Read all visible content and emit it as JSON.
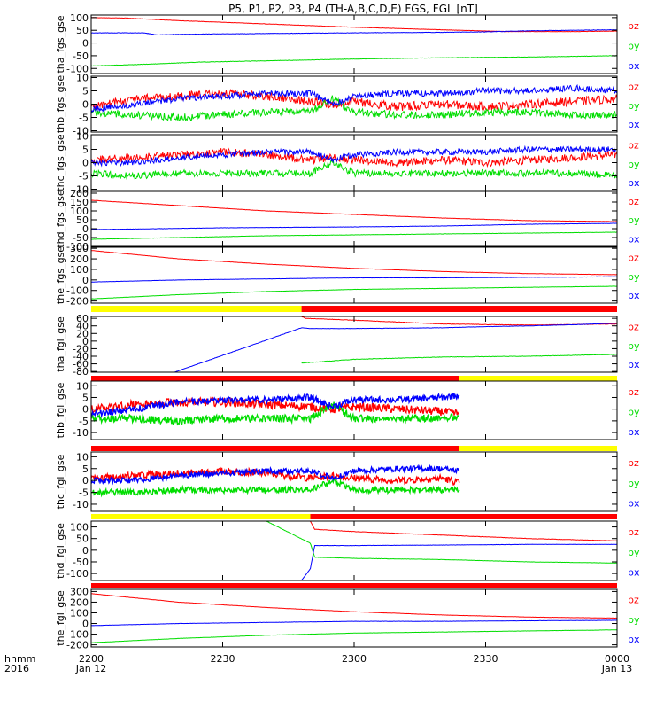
{
  "title": "P5, P1, P2, P3, P4 (TH-A,B,C,D,E) FGS, FGL [nT]",
  "colors": {
    "bz": "#ff0000",
    "by": "#00dd00",
    "bx": "#0000ff",
    "flag_yellow": "#ffff00",
    "flag_red": "#ff0000"
  },
  "x_axis": {
    "row_label": "hhmm",
    "year_label": "2016",
    "ticks": [
      {
        "label": "2200",
        "date": "Jan 12",
        "minutes": 0
      },
      {
        "label": "2230",
        "date": "",
        "minutes": 30
      },
      {
        "label": "2300",
        "date": "",
        "minutes": 60
      },
      {
        "label": "2330",
        "date": "",
        "minutes": 90
      },
      {
        "label": "0000",
        "date": "Jan 13",
        "minutes": 120
      }
    ],
    "range_minutes": [
      0,
      120
    ]
  },
  "chart_data": [
    {
      "type": "line",
      "ylabel": "tha_fgs_gse",
      "ylim": [
        -120,
        110
      ],
      "yticks": [
        {
          "v": 100,
          "l": "100"
        },
        {
          "v": 50,
          "l": "50"
        },
        {
          "v": 0,
          "l": "0"
        },
        {
          "v": -50,
          "l": "-50"
        },
        {
          "v": -100,
          "l": "-100"
        }
      ],
      "series": [
        {
          "name": "bz",
          "x": [
            0,
            8,
            20,
            40,
            60,
            80,
            95,
            110,
            120
          ],
          "y": [
            100,
            98,
            88,
            75,
            62,
            52,
            45,
            45,
            47
          ],
          "noise": 0.6
        },
        {
          "name": "by",
          "x": [
            0,
            10,
            25,
            40,
            60,
            80,
            100,
            120
          ],
          "y": [
            -90,
            -85,
            -75,
            -70,
            -63,
            -58,
            -55,
            -50
          ],
          "noise": 0.8
        },
        {
          "name": "bx",
          "x": [
            0,
            12,
            15,
            20,
            30,
            45,
            60,
            80,
            90,
            100,
            120
          ],
          "y": [
            40,
            40,
            32,
            34,
            36,
            38,
            40,
            42,
            44,
            48,
            52
          ],
          "noise": 0.8
        }
      ]
    },
    {
      "type": "line",
      "ylabel": "thb_fgs_gse",
      "ylim": [
        -10.5,
        10.5
      ],
      "yticks": [
        {
          "v": 10,
          "l": "10"
        },
        {
          "v": 5,
          "l": "5"
        },
        {
          "v": 0,
          "l": "0"
        },
        {
          "v": -5,
          "l": "-5"
        },
        {
          "v": -10,
          "l": "-10"
        }
      ],
      "series": [
        {
          "name": "bz",
          "x": [
            0,
            10,
            20,
            30,
            40,
            50,
            55,
            60,
            70,
            80,
            90,
            100,
            110,
            120
          ],
          "y": [
            -1,
            2,
            3,
            4,
            3,
            1,
            0,
            1,
            -1,
            0,
            -1,
            0,
            1,
            2
          ],
          "noise": 1.6
        },
        {
          "name": "by",
          "x": [
            0,
            10,
            20,
            30,
            40,
            50,
            55,
            60,
            70,
            80,
            90,
            100,
            110,
            120
          ],
          "y": [
            -3,
            -4,
            -5,
            -4,
            -3,
            -3,
            2,
            -3,
            -4,
            -4,
            -3,
            -3,
            -4,
            -4
          ],
          "noise": 1.4
        },
        {
          "name": "bx",
          "x": [
            0,
            10,
            20,
            30,
            40,
            50,
            55,
            60,
            70,
            80,
            90,
            100,
            110,
            120
          ],
          "y": [
            -2,
            0,
            2,
            3,
            4,
            4,
            0,
            3,
            4,
            4,
            5,
            5,
            6,
            5
          ],
          "noise": 1.2
        }
      ]
    },
    {
      "type": "line",
      "ylabel": "thc_fgs_gse",
      "ylim": [
        -10.5,
        10.5
      ],
      "yticks": [
        {
          "v": 10,
          "l": "10"
        },
        {
          "v": 5,
          "l": "5"
        },
        {
          "v": 0,
          "l": "0"
        },
        {
          "v": -5,
          "l": "-5"
        },
        {
          "v": -10,
          "l": "-10"
        }
      ],
      "series": [
        {
          "name": "bz",
          "x": [
            0,
            10,
            20,
            30,
            40,
            50,
            55,
            60,
            70,
            80,
            90,
            100,
            110,
            120
          ],
          "y": [
            1,
            2,
            3,
            4,
            3,
            1,
            2,
            1,
            0,
            1,
            0,
            1,
            2,
            3
          ],
          "noise": 1.5
        },
        {
          "name": "by",
          "x": [
            0,
            10,
            20,
            30,
            40,
            50,
            55,
            60,
            70,
            80,
            90,
            100,
            110,
            120
          ],
          "y": [
            -4,
            -5,
            -4,
            -4,
            -4,
            -4,
            0,
            -4,
            -4,
            -4,
            -4,
            -4,
            -4,
            -5
          ],
          "noise": 1.3
        },
        {
          "name": "bx",
          "x": [
            0,
            10,
            20,
            30,
            40,
            50,
            55,
            60,
            70,
            80,
            90,
            100,
            110,
            120
          ],
          "y": [
            0,
            0,
            2,
            3,
            4,
            4,
            1,
            3,
            4,
            4,
            4,
            5,
            5,
            5
          ],
          "noise": 1.1
        }
      ]
    },
    {
      "type": "line",
      "ylabel": "thd_fgs_gse",
      "ylim": [
        -100,
        210
      ],
      "yticks": [
        {
          "v": 200,
          "l": "200"
        },
        {
          "v": 150,
          "l": "150"
        },
        {
          "v": 100,
          "l": "100"
        },
        {
          "v": 50,
          "l": "50"
        },
        {
          "v": 0,
          "l": "0"
        },
        {
          "v": -50,
          "l": "-50"
        },
        {
          "v": -100,
          "l": "-100"
        }
      ],
      "series": [
        {
          "name": "bz",
          "x": [
            0,
            20,
            40,
            60,
            80,
            100,
            120
          ],
          "y": [
            160,
            130,
            100,
            80,
            60,
            45,
            40
          ],
          "noise": 0.8
        },
        {
          "name": "by",
          "x": [
            0,
            20,
            40,
            60,
            80,
            100,
            120
          ],
          "y": [
            -60,
            -50,
            -40,
            -35,
            -30,
            -25,
            -20
          ],
          "noise": 0.8
        },
        {
          "name": "bx",
          "x": [
            0,
            10,
            30,
            60,
            80,
            90,
            100,
            120
          ],
          "y": [
            -5,
            -2,
            5,
            10,
            15,
            20,
            25,
            30
          ],
          "noise": 0.8
        }
      ]
    },
    {
      "type": "line",
      "ylabel": "the_fgs_gse",
      "ylim": [
        -220,
        310
      ],
      "yticks": [
        {
          "v": 300,
          "l": "300"
        },
        {
          "v": 200,
          "l": "200"
        },
        {
          "v": 100,
          "l": "100"
        },
        {
          "v": 0,
          "l": "0"
        },
        {
          "v": -100,
          "l": "-100"
        },
        {
          "v": -200,
          "l": "-200"
        }
      ],
      "series": [
        {
          "name": "bz",
          "x": [
            0,
            20,
            40,
            60,
            80,
            100,
            120
          ],
          "y": [
            280,
            200,
            150,
            110,
            80,
            60,
            50
          ],
          "noise": 1.0
        },
        {
          "name": "by",
          "x": [
            0,
            20,
            40,
            60,
            80,
            100,
            120
          ],
          "y": [
            -180,
            -140,
            -110,
            -90,
            -80,
            -70,
            -60
          ],
          "noise": 1.0
        },
        {
          "name": "bx",
          "x": [
            0,
            20,
            40,
            60,
            80,
            100,
            120
          ],
          "y": [
            -20,
            0,
            10,
            20,
            20,
            25,
            30
          ],
          "noise": 1.0
        }
      ]
    },
    {
      "type": "line",
      "ylabel": "tha_fgl_gse",
      "ylim": [
        -82,
        65
      ],
      "yticks": [
        {
          "v": 60,
          "l": "60"
        },
        {
          "v": 40,
          "l": "40"
        },
        {
          "v": 20,
          "l": "20"
        },
        {
          "v": 0,
          "l": "0"
        },
        {
          "v": -20,
          "l": "-20"
        },
        {
          "v": -40,
          "l": "-40"
        },
        {
          "v": -60,
          "l": "-60"
        },
        {
          "v": -80,
          "l": "-80"
        }
      ],
      "flag": [
        {
          "x": [
            0,
            48
          ],
          "color": "yellow"
        },
        {
          "x": [
            48,
            120
          ],
          "color": "red"
        }
      ],
      "series": [
        {
          "name": "bz",
          "x": [
            48,
            49,
            60,
            80,
            100,
            120
          ],
          "y": [
            65,
            60,
            55,
            45,
            42,
            45
          ],
          "noise": 0.6
        },
        {
          "name": "by",
          "x": [
            48,
            60,
            80,
            100,
            120
          ],
          "y": [
            -58,
            -48,
            -42,
            -40,
            -35
          ],
          "noise": 0.6
        },
        {
          "name": "bx",
          "x": [
            19,
            48,
            50,
            60,
            80,
            90,
            100,
            110,
            120
          ],
          "y": [
            -82,
            35,
            33,
            33,
            35,
            38,
            40,
            43,
            47
          ],
          "noise": 0.4
        }
      ]
    },
    {
      "type": "line",
      "ylabel": "thb_fgl_gse",
      "ylim": [
        -13,
        12
      ],
      "yticks": [
        {
          "v": 10,
          "l": "10"
        },
        {
          "v": 5,
          "l": "5"
        },
        {
          "v": 0,
          "l": "0"
        },
        {
          "v": -5,
          "l": "-5"
        },
        {
          "v": -10,
          "l": "-10"
        }
      ],
      "flag": [
        {
          "x": [
            0,
            84
          ],
          "color": "red"
        },
        {
          "x": [
            84,
            120
          ],
          "color": "yellow"
        }
      ],
      "series": [
        {
          "name": "bz",
          "x": [
            0,
            10,
            20,
            30,
            40,
            50,
            55,
            60,
            70,
            80,
            84
          ],
          "y": [
            0,
            2,
            3,
            3,
            2,
            1,
            0,
            1,
            0,
            -1,
            -2
          ],
          "noise": 1.8
        },
        {
          "name": "by",
          "x": [
            0,
            10,
            20,
            30,
            40,
            50,
            55,
            60,
            70,
            80,
            84
          ],
          "y": [
            -4,
            -4,
            -5,
            -4,
            -4,
            -4,
            2,
            -4,
            -4,
            -4,
            -3
          ],
          "noise": 1.6
        },
        {
          "name": "bx",
          "x": [
            0,
            10,
            20,
            30,
            40,
            50,
            55,
            60,
            70,
            80,
            84
          ],
          "y": [
            -2,
            0,
            3,
            4,
            4,
            5,
            1,
            4,
            4,
            5,
            6
          ],
          "noise": 1.4
        }
      ]
    },
    {
      "type": "line",
      "ylabel": "thc_fgl_gse",
      "ylim": [
        -13,
        12
      ],
      "yticks": [
        {
          "v": 10,
          "l": "10"
        },
        {
          "v": 5,
          "l": "5"
        },
        {
          "v": 0,
          "l": "0"
        },
        {
          "v": -5,
          "l": "-5"
        },
        {
          "v": -10,
          "l": "-10"
        }
      ],
      "flag": [
        {
          "x": [
            0,
            84
          ],
          "color": "red"
        },
        {
          "x": [
            84,
            120
          ],
          "color": "yellow"
        }
      ],
      "series": [
        {
          "name": "bz",
          "x": [
            0,
            10,
            20,
            30,
            40,
            50,
            55,
            60,
            70,
            80,
            84
          ],
          "y": [
            1,
            2,
            3,
            4,
            3,
            1,
            2,
            1,
            0,
            1,
            -1
          ],
          "noise": 1.5
        },
        {
          "name": "by",
          "x": [
            0,
            10,
            20,
            30,
            40,
            50,
            55,
            60,
            70,
            80,
            84
          ],
          "y": [
            -5,
            -5,
            -4,
            -4,
            -4,
            -4,
            0,
            -4,
            -4,
            -4,
            -4
          ],
          "noise": 1.3
        },
        {
          "name": "bx",
          "x": [
            0,
            10,
            20,
            30,
            40,
            50,
            55,
            60,
            70,
            80,
            84
          ],
          "y": [
            0,
            0,
            2,
            3,
            4,
            4,
            1,
            4,
            5,
            5,
            4
          ],
          "noise": 1.2
        }
      ]
    },
    {
      "type": "line",
      "ylabel": "thd_fgl_gse",
      "ylim": [
        -130,
        125
      ],
      "yticks": [
        {
          "v": 100,
          "l": "100"
        },
        {
          "v": 50,
          "l": "50"
        },
        {
          "v": 0,
          "l": "0"
        },
        {
          "v": -50,
          "l": "-50"
        },
        {
          "v": -100,
          "l": "-100"
        }
      ],
      "flag": [
        {
          "x": [
            0,
            50
          ],
          "color": "yellow"
        },
        {
          "x": [
            50,
            120
          ],
          "color": "red"
        }
      ],
      "series": [
        {
          "name": "bz",
          "x": [
            50,
            51,
            60,
            80,
            100,
            120
          ],
          "y": [
            125,
            90,
            80,
            65,
            50,
            40
          ],
          "noise": 0.8
        },
        {
          "name": "by",
          "x": [
            40,
            50,
            51,
            60,
            80,
            100,
            120
          ],
          "y": [
            125,
            30,
            -30,
            -35,
            -40,
            -50,
            -55
          ],
          "noise": 0.6
        },
        {
          "name": "bx",
          "x": [
            48,
            50,
            51,
            60,
            80,
            100,
            120
          ],
          "y": [
            -130,
            -80,
            20,
            20,
            22,
            25,
            25
          ],
          "noise": 0.6
        }
      ]
    },
    {
      "type": "line",
      "ylabel": "the_fgl_gse",
      "ylim": [
        -220,
        320
      ],
      "yticks": [
        {
          "v": 300,
          "l": "300"
        },
        {
          "v": 200,
          "l": "200"
        },
        {
          "v": 100,
          "l": "100"
        },
        {
          "v": 0,
          "l": "0"
        },
        {
          "v": -100,
          "l": "-100"
        },
        {
          "v": -200,
          "l": "-200"
        }
      ],
      "flag": [
        {
          "x": [
            0,
            120
          ],
          "color": "red"
        }
      ],
      "series": [
        {
          "name": "bz",
          "x": [
            0,
            20,
            40,
            60,
            80,
            100,
            120
          ],
          "y": [
            280,
            200,
            150,
            110,
            80,
            60,
            50
          ],
          "noise": 1.0
        },
        {
          "name": "by",
          "x": [
            0,
            20,
            40,
            60,
            80,
            100,
            120
          ],
          "y": [
            -180,
            -140,
            -110,
            -90,
            -80,
            -70,
            -60
          ],
          "noise": 1.0
        },
        {
          "name": "bx",
          "x": [
            0,
            20,
            40,
            60,
            80,
            100,
            120
          ],
          "y": [
            -20,
            0,
            10,
            20,
            20,
            25,
            30
          ],
          "noise": 1.0
        }
      ]
    }
  ]
}
